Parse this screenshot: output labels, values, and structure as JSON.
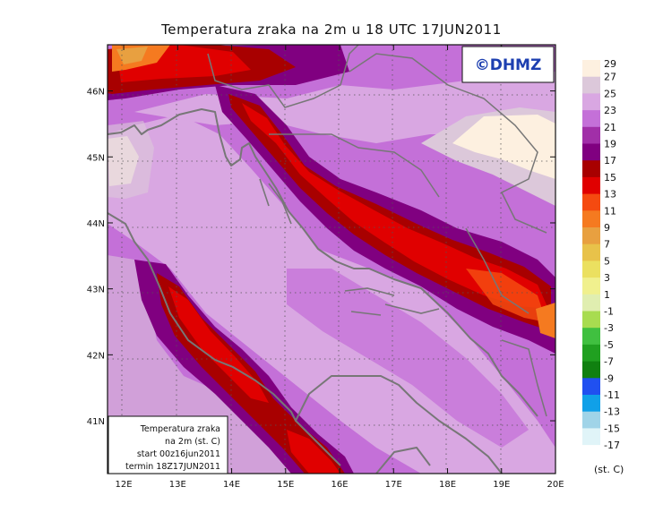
{
  "title": "Temperatura zraka na 2m u 18 UTC 17JUN2011",
  "watermark": "©DHMZ",
  "info_box": {
    "line1": "Temperatura zraka",
    "line2": "na 2m (st. C)",
    "line3": "start 00z16jun2011",
    "line4": "termin 18Z17JUN2011"
  },
  "axes": {
    "lon_ticks": [
      "12E",
      "13E",
      "14E",
      "15E",
      "16E",
      "17E",
      "18E",
      "19E",
      "20E"
    ],
    "lat_ticks": [
      "46N",
      "45N",
      "44N",
      "43N",
      "42N",
      "41N"
    ],
    "lon_range": [
      11.7,
      20.0
    ],
    "lat_range": [
      40.2,
      46.7
    ]
  },
  "colorbar": {
    "unit_label": "(st. C)",
    "levels": [
      {
        "label": "29",
        "color": "#fdf0e0"
      },
      {
        "label": "27",
        "color": "#dcc8da"
      },
      {
        "label": "25",
        "color": "#d9a7e2"
      },
      {
        "label": "23",
        "color": "#c470d8"
      },
      {
        "label": "21",
        "color": "#a12fa8"
      },
      {
        "label": "19",
        "color": "#800080"
      },
      {
        "label": "17",
        "color": "#a80000"
      },
      {
        "label": "15",
        "color": "#e00000"
      },
      {
        "label": "13",
        "color": "#f54a10"
      },
      {
        "label": "11",
        "color": "#f57a20"
      },
      {
        "label": "9",
        "color": "#e8a040"
      },
      {
        "label": "7",
        "color": "#e8c24a"
      },
      {
        "label": "5",
        "color": "#ebe060"
      },
      {
        "label": "3",
        "color": "#f0f08e"
      },
      {
        "label": "1",
        "color": "#e0eeb0"
      },
      {
        "label": "-1",
        "color": "#a8dc50"
      },
      {
        "label": "-3",
        "color": "#40c040"
      },
      {
        "label": "-5",
        "color": "#20a020"
      },
      {
        "label": "-7",
        "color": "#108010"
      },
      {
        "label": "-9",
        "color": "#2050f0"
      },
      {
        "label": "-11",
        "color": "#10a0e8"
      },
      {
        "label": "-13",
        "color": "#a0d4e8"
      },
      {
        "label": "-15",
        "color": "#e0f4f8"
      },
      {
        "label": "-17",
        "color": "#ffffff"
      }
    ]
  }
}
